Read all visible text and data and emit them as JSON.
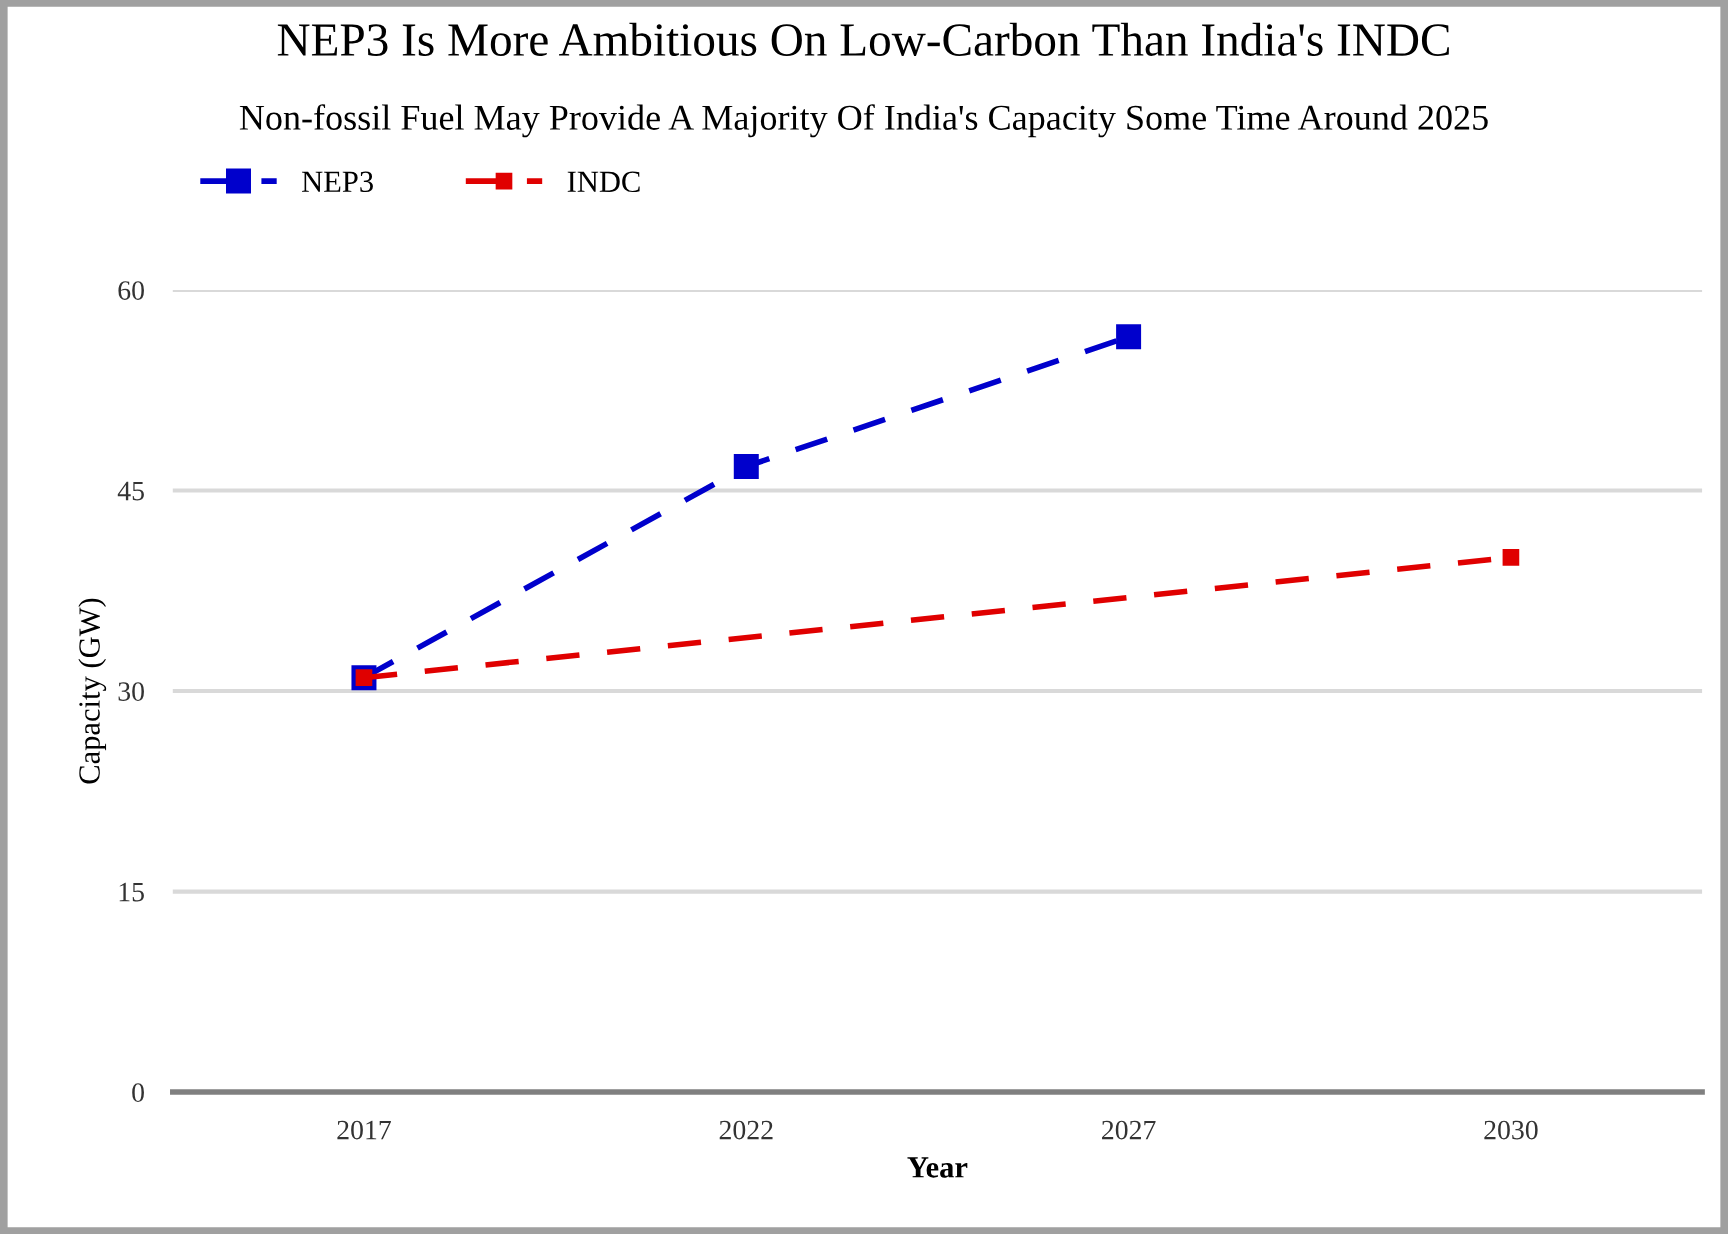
{
  "chart_data": {
    "type": "line",
    "title": "NEP3 Is More Ambitious On Low-Carbon Than India's INDC",
    "subtitle": "Non-fossil Fuel May Provide A Majority Of India's Capacity Some Time Around 2025",
    "xlabel": "Year",
    "ylabel": "Capacity (GW)",
    "categories": [
      "2017",
      "2022",
      "2027",
      "2030"
    ],
    "series": [
      {
        "name": "NEP3",
        "color": "#0000cc",
        "values": [
          31,
          46.8,
          56.5,
          null
        ]
      },
      {
        "name": "INDC",
        "color": "#e00000",
        "values": [
          31,
          null,
          null,
          40
        ]
      }
    ],
    "ylim": [
      0,
      60
    ],
    "yticks": [
      0,
      15,
      30,
      45,
      60
    ],
    "grid": "y",
    "legend": "top left",
    "marker": "square",
    "line_style": "dashed"
  }
}
